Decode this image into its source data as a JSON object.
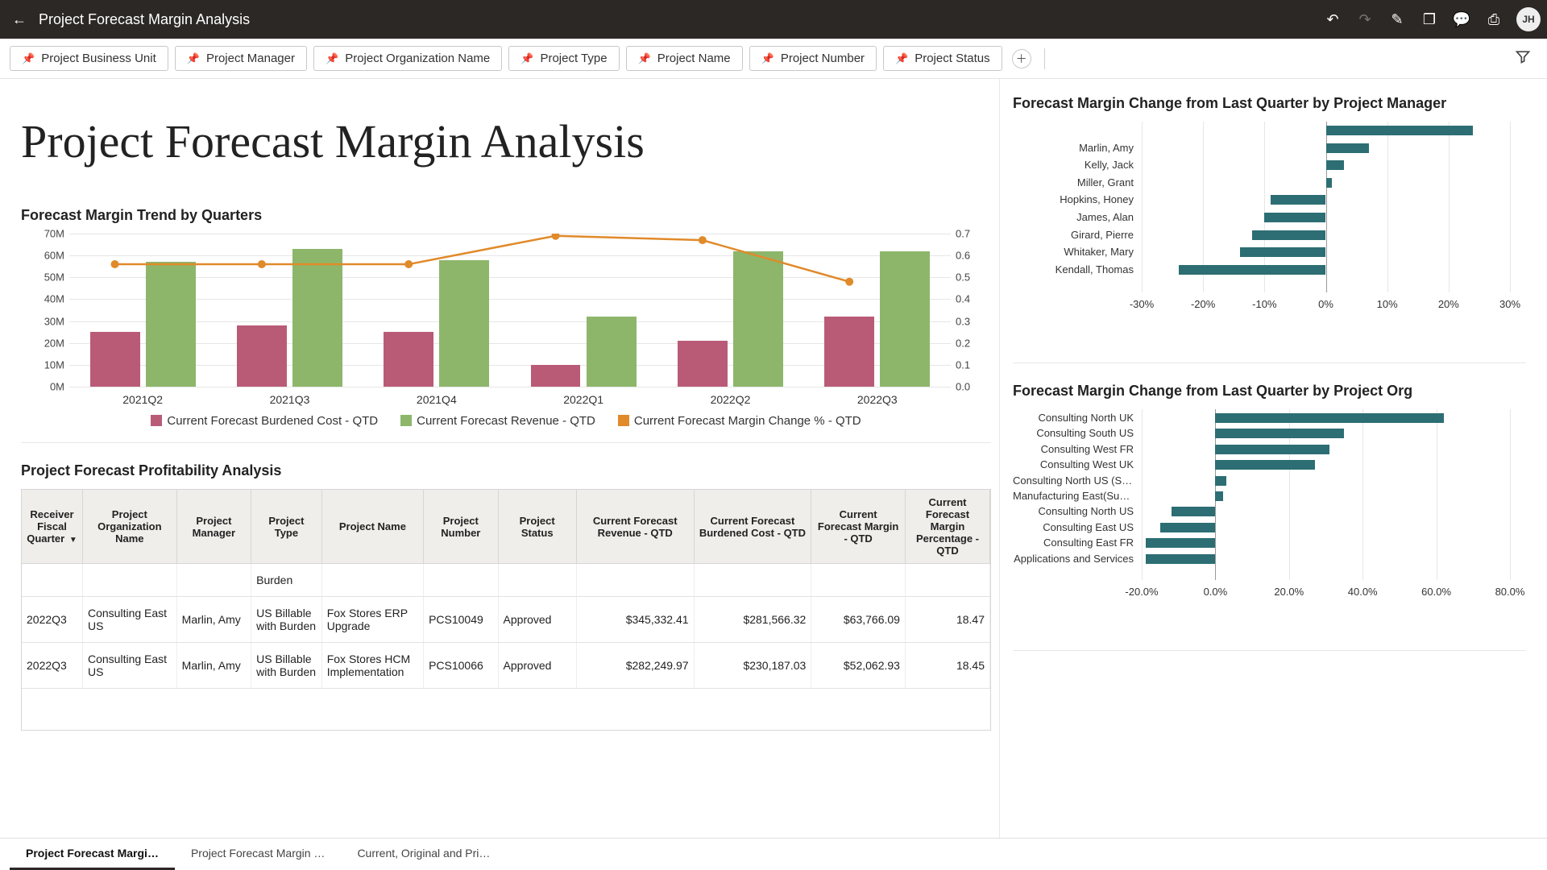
{
  "colors": {
    "cost_bar": "#b95b77",
    "rev_bar": "#8db66a",
    "line": "#e08a2a",
    "hbar": "#2c6e73",
    "grid": "#e6e6e6",
    "topbar_bg": "#2c2826"
  },
  "header": {
    "page_title": "Project Forecast Margin Analysis",
    "avatar_initials": "JH"
  },
  "filters": [
    "Project Business Unit",
    "Project Manager",
    "Project Organization Name",
    "Project Type",
    "Project Name",
    "Project Number",
    "Project Status"
  ],
  "page_heading": "Project Forecast Margin Analysis",
  "combo": {
    "title": "Forecast Margin Trend by Quarters",
    "categories": [
      "2021Q2",
      "2021Q3",
      "2021Q4",
      "2022Q1",
      "2022Q2",
      "2022Q3"
    ],
    "cost": [
      25,
      28,
      25,
      10,
      21,
      32
    ],
    "revenue": [
      57,
      63,
      58,
      32,
      62,
      62
    ],
    "margin_pct": [
      0.56,
      0.56,
      0.56,
      0.69,
      0.67,
      0.48
    ],
    "y_left": {
      "min": 0,
      "max": 70,
      "step": 10,
      "suffix": "M"
    },
    "y_right": {
      "min": 0.0,
      "max": 0.7,
      "step": 0.1
    },
    "legend": {
      "cost": "Current Forecast Burdened Cost - QTD",
      "rev": "Current Forecast Revenue - QTD",
      "line": "Current Forecast Margin Change % - QTD"
    }
  },
  "hbar_pm": {
    "title": "Forecast Margin Change from Last Quarter by Project Manager",
    "x": {
      "min": -30,
      "max": 30,
      "step": 10,
      "suffix": "%"
    },
    "rows": [
      {
        "label": "",
        "value": 24
      },
      {
        "label": "Marlin, Amy",
        "value": 7
      },
      {
        "label": "Kelly, Jack",
        "value": 3
      },
      {
        "label": "Miller, Grant",
        "value": 1
      },
      {
        "label": "Hopkins, Honey",
        "value": -9
      },
      {
        "label": "James, Alan",
        "value": -10
      },
      {
        "label": "Girard, Pierre",
        "value": -12
      },
      {
        "label": "Whitaker, Mary",
        "value": -14
      },
      {
        "label": "Kendall, Thomas",
        "value": -24
      }
    ]
  },
  "hbar_org": {
    "title": "Forecast Margin Change from Last Quarter by Project Org",
    "x": {
      "min": -20,
      "max": 80,
      "step": 20,
      "suffix": ".0%"
    },
    "rows": [
      {
        "label": "Consulting North UK",
        "value": 62
      },
      {
        "label": "Consulting South US",
        "value": 35
      },
      {
        "label": "Consulting West FR",
        "value": 31
      },
      {
        "label": "Consulting West UK",
        "value": 27
      },
      {
        "label": "Consulting North US (Supr…",
        "value": 3
      },
      {
        "label": "Manufacturing East(Supre…",
        "value": 2
      },
      {
        "label": "Consulting North US",
        "value": -12
      },
      {
        "label": "Consulting East US",
        "value": -15
      },
      {
        "label": "Consulting East FR",
        "value": -19
      },
      {
        "label": "Applications and Services",
        "value": -19
      }
    ]
  },
  "table": {
    "title": "Project Forecast Profitability Analysis",
    "columns": [
      "Receiver Fiscal Quarter",
      "Project Organization Name",
      "Project Manager",
      "Project Type",
      "Project Name",
      "Project Number",
      "Project Status",
      "Current Forecast Revenue - QTD",
      "Current Forecast Burdened Cost - QTD",
      "Current Forecast Margin - QTD",
      "Current Forecast Margin Percentage - QTD"
    ],
    "rows": [
      {
        "q": "",
        "org": "",
        "mgr": "",
        "type": "Burden",
        "name": "",
        "num": "",
        "status": "",
        "rev": "",
        "cost": "",
        "mar": "",
        "pct": ""
      },
      {
        "q": "2022Q3",
        "org": "Consulting East US",
        "mgr": "Marlin, Amy",
        "type": "US Billable with Burden",
        "name": "Fox Stores ERP Upgrade",
        "num": "PCS10049",
        "status": "Approved",
        "rev": "$345,332.41",
        "cost": "$281,566.32",
        "mar": "$63,766.09",
        "pct": "18.47"
      },
      {
        "q": "2022Q3",
        "org": "Consulting East US",
        "mgr": "Marlin, Amy",
        "type": "US Billable with Burden",
        "name": "Fox Stores HCM Implementation",
        "num": "PCS10066",
        "status": "Approved",
        "rev": "$282,249.97",
        "cost": "$230,187.03",
        "mar": "$52,062.93",
        "pct": "18.45"
      }
    ]
  },
  "tabs": [
    "Project Forecast Margi…",
    "Project Forecast Margin …",
    "Current, Original and Pri…"
  ]
}
